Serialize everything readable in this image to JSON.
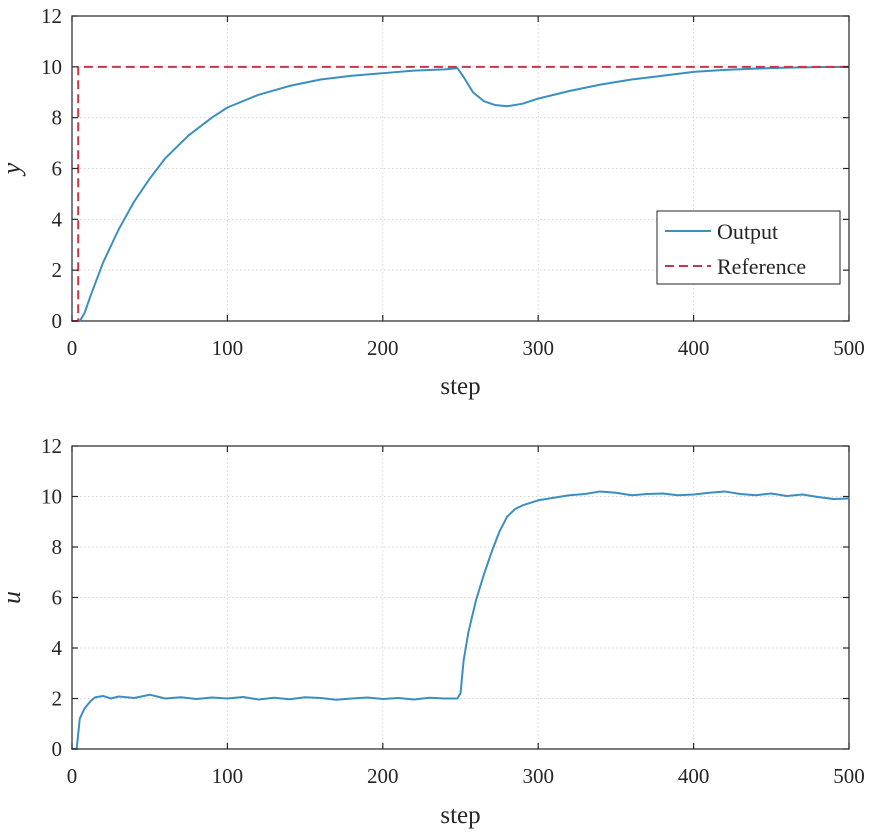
{
  "colors": {
    "output": "#3a8fc0",
    "reference": "#c8364a",
    "axis": "#262626",
    "grid": "#d6d6d6"
  },
  "chart_data": [
    {
      "type": "line",
      "xlabel": "step",
      "ylabel": "y",
      "xlim": [
        0,
        500
      ],
      "ylim": [
        0,
        12
      ],
      "xticks": [
        "0",
        "100",
        "200",
        "300",
        "400",
        "500"
      ],
      "yticks": [
        "0",
        "2",
        "4",
        "6",
        "8",
        "10",
        "12"
      ],
      "grid": true,
      "legend_position": "lower-right",
      "legend": [
        "Output",
        "Reference"
      ],
      "series": [
        {
          "name": "Output",
          "style": "solid",
          "color": "#3a8fc0",
          "x": [
            0,
            5,
            8,
            12,
            20,
            30,
            40,
            50,
            60,
            75,
            90,
            100,
            120,
            140,
            160,
            180,
            200,
            220,
            240,
            248,
            252,
            258,
            265,
            272,
            280,
            290,
            300,
            320,
            340,
            360,
            380,
            400,
            420,
            440,
            460,
            480,
            500
          ],
          "y": [
            0,
            0,
            0.3,
            1.0,
            2.3,
            3.6,
            4.7,
            5.6,
            6.4,
            7.3,
            8.0,
            8.4,
            8.9,
            9.25,
            9.5,
            9.65,
            9.75,
            9.85,
            9.9,
            9.95,
            9.6,
            9.0,
            8.65,
            8.5,
            8.45,
            8.55,
            8.75,
            9.05,
            9.3,
            9.5,
            9.65,
            9.8,
            9.88,
            9.93,
            9.97,
            9.99,
            10.0
          ]
        },
        {
          "name": "Reference",
          "style": "dashed",
          "color": "#c8364a",
          "x": [
            0,
            4,
            4,
            500
          ],
          "y": [
            0,
            0,
            10,
            10
          ]
        }
      ]
    },
    {
      "type": "line",
      "xlabel": "step",
      "ylabel": "u",
      "xlim": [
        0,
        500
      ],
      "ylim": [
        0,
        12
      ],
      "xticks": [
        "0",
        "100",
        "200",
        "300",
        "400",
        "500"
      ],
      "yticks": [
        "0",
        "2",
        "4",
        "6",
        "8",
        "10",
        "12"
      ],
      "grid": true,
      "series": [
        {
          "name": "",
          "style": "solid",
          "color": "#3a8fc0",
          "x": [
            0,
            3,
            5,
            8,
            12,
            15,
            20,
            25,
            30,
            40,
            50,
            60,
            70,
            80,
            90,
            100,
            110,
            120,
            130,
            140,
            150,
            160,
            170,
            180,
            190,
            200,
            210,
            220,
            230,
            240,
            248,
            250,
            252,
            255,
            260,
            265,
            270,
            275,
            280,
            285,
            290,
            295,
            300,
            310,
            320,
            330,
            340,
            350,
            360,
            370,
            380,
            390,
            400,
            410,
            420,
            430,
            440,
            450,
            460,
            470,
            480,
            490,
            500
          ],
          "y": [
            0,
            0,
            1.2,
            1.6,
            1.9,
            2.05,
            2.1,
            2.0,
            2.08,
            2.02,
            2.15,
            2.0,
            2.05,
            1.98,
            2.04,
            2.0,
            2.06,
            1.96,
            2.03,
            1.97,
            2.05,
            2.02,
            1.95,
            2.0,
            2.04,
            1.98,
            2.02,
            1.96,
            2.03,
            2.0,
            2.0,
            2.2,
            3.5,
            4.6,
            5.9,
            6.9,
            7.8,
            8.6,
            9.2,
            9.5,
            9.65,
            9.75,
            9.85,
            9.95,
            10.05,
            10.1,
            10.2,
            10.15,
            10.05,
            10.1,
            10.12,
            10.05,
            10.08,
            10.15,
            10.2,
            10.1,
            10.05,
            10.12,
            10.02,
            10.08,
            9.98,
            9.9,
            9.92
          ]
        }
      ]
    }
  ]
}
